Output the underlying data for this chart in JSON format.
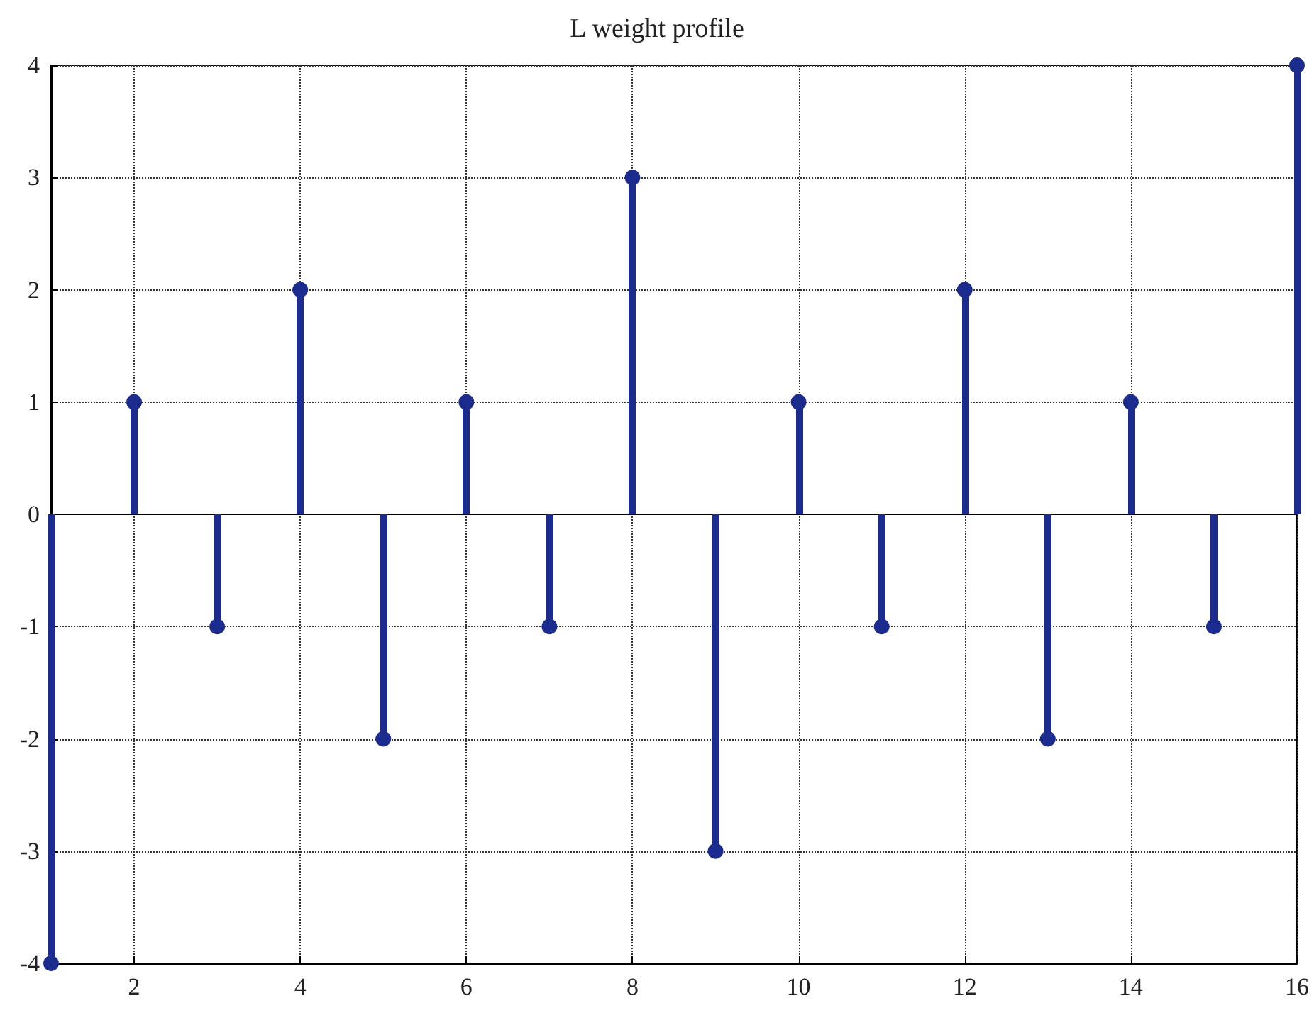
{
  "chart_data": {
    "type": "lollipop",
    "title": "L weight profile",
    "x": [
      1,
      2,
      3,
      4,
      5,
      6,
      7,
      8,
      9,
      10,
      11,
      12,
      13,
      14,
      15,
      16
    ],
    "values": [
      -4,
      1,
      -1,
      2,
      -2,
      1,
      -1,
      3,
      -3,
      1,
      -1,
      2,
      -2,
      1,
      -1,
      4
    ],
    "color": "#1c2b8e",
    "xlim": [
      1,
      16
    ],
    "xticks": [
      2,
      4,
      6,
      8,
      10,
      12,
      14,
      16
    ],
    "ylim": [
      -4,
      4
    ],
    "yticks": [
      -4,
      -3,
      -2,
      -1,
      0,
      1,
      2,
      3,
      4
    ],
    "grid": true,
    "marker": "circle"
  }
}
